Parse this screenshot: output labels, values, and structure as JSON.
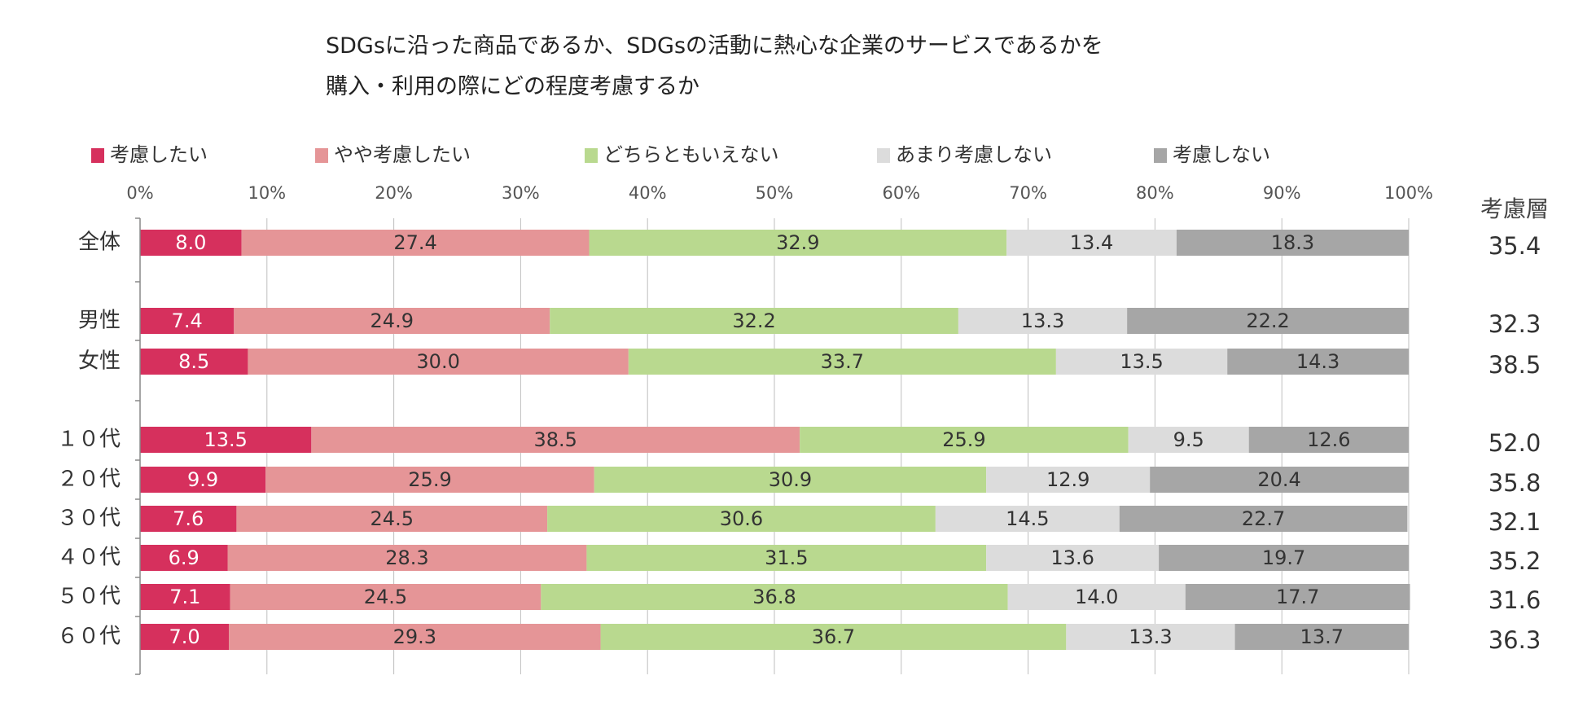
{
  "title_lines": [
    "SDGsに沿った商品であるか、SDGsの活動に熱心な企業のサービスであるかを",
    "購入・利用の際にどの程度考慮するか"
  ],
  "colors": {
    "考慮したい": "#d6305d",
    "やや考慮したい": "#e59597",
    "どちらともいえない": "#b9d98f",
    "あまり考慮しない": "#dcdcdc",
    "考慮しない": "#a6a6a6",
    "grid": "#bfbfbf"
  },
  "chart_data": {
    "type": "bar",
    "orientation": "horizontal",
    "stacked": "percent",
    "xlim": [
      0,
      100
    ],
    "x_ticks": [
      "0%",
      "10%",
      "20%",
      "30%",
      "40%",
      "50%",
      "60%",
      "70%",
      "80%",
      "90%",
      "100%"
    ],
    "legend_position": "top",
    "grid": true,
    "categories": [
      "全体",
      "男性",
      "女性",
      "１０代",
      "２０代",
      "３０代",
      "４０代",
      "５０代",
      "６０代"
    ],
    "groups": [
      [
        "全体"
      ],
      [
        "男性",
        "女性"
      ],
      [
        "１０代",
        "２０代",
        "３０代",
        "４０代",
        "５０代",
        "６０代"
      ]
    ],
    "series": [
      {
        "name": "考慮したい",
        "values": [
          8.0,
          7.4,
          8.5,
          13.5,
          9.9,
          7.6,
          6.9,
          7.1,
          7.0
        ]
      },
      {
        "name": "やや考慮したい",
        "values": [
          27.4,
          24.9,
          30.0,
          38.5,
          25.9,
          24.5,
          28.3,
          24.5,
          29.3
        ]
      },
      {
        "name": "どちらともいえない",
        "values": [
          32.9,
          32.2,
          33.7,
          25.9,
          30.9,
          30.6,
          31.5,
          36.8,
          36.7
        ]
      },
      {
        "name": "あまり考慮しない",
        "values": [
          13.4,
          13.3,
          13.5,
          9.5,
          12.9,
          14.5,
          13.6,
          14.0,
          13.3
        ]
      },
      {
        "name": "考慮しない",
        "values": [
          18.3,
          22.2,
          14.3,
          12.6,
          20.4,
          22.7,
          19.7,
          17.7,
          13.7
        ]
      }
    ],
    "side_column": {
      "header": "考慮層",
      "values": [
        "35.4",
        "32.3",
        "38.5",
        "52.0",
        "35.8",
        "32.1",
        "35.2",
        "31.6",
        "36.3"
      ]
    }
  }
}
